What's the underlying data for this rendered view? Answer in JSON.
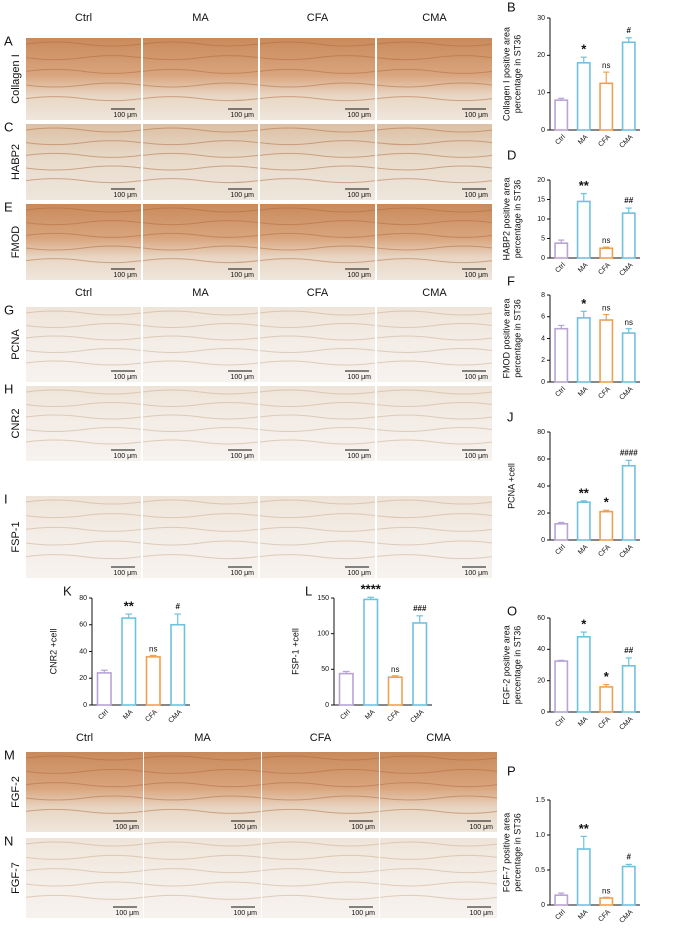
{
  "scale_label": "100 μm",
  "image_groups": [
    {
      "columns": [
        "Ctrl",
        "MA",
        "CFA",
        "CMA"
      ],
      "rows": [
        {
          "letter": "A",
          "label": "Collagen I"
        },
        {
          "letter": "C",
          "label": "HABP2"
        },
        {
          "letter": "E",
          "label": "FMOD"
        }
      ]
    },
    {
      "columns": [
        "Ctrl",
        "MA",
        "CFA",
        "CMA"
      ],
      "rows": [
        {
          "letter": "G",
          "label": "PCNA"
        },
        {
          "letter": "H",
          "label": "CNR2"
        },
        {
          "letter": "I",
          "label": "FSP-1"
        }
      ]
    },
    {
      "columns": [
        "Ctrl",
        "MA",
        "CFA",
        "CMA"
      ],
      "rows": [
        {
          "letter": "M",
          "label": "FGF-2"
        },
        {
          "letter": "N",
          "label": "FGF-7"
        }
      ]
    }
  ],
  "chart_data": [
    {
      "type": "bar",
      "panel": "B",
      "y_label": [
        "Collagen I positive area",
        "percentage in ST36"
      ],
      "categories": [
        "Ctrl",
        "MA",
        "CFA",
        "CMA"
      ],
      "values": [
        8,
        18,
        12.5,
        23.5
      ],
      "errors": [
        0.5,
        1.5,
        3,
        1.2
      ],
      "significance": [
        null,
        "*",
        "ns",
        "#"
      ],
      "colors": [
        "#b7a3d6",
        "#6ec2df",
        "#f0a04f",
        "#6ec2df"
      ],
      "ylim": [
        0,
        30
      ],
      "yticks": [
        0,
        10,
        20,
        30
      ]
    },
    {
      "type": "bar",
      "panel": "D",
      "y_label": [
        "HABP2 positive area",
        "percentage in ST36"
      ],
      "categories": [
        "Ctrl",
        "MA",
        "CFA",
        "CMA"
      ],
      "values": [
        3.8,
        14.5,
        2.5,
        11.5
      ],
      "errors": [
        0.8,
        2,
        0.3,
        1.3
      ],
      "significance": [
        null,
        "**",
        "ns",
        "##"
      ],
      "colors": [
        "#b7a3d6",
        "#6ec2df",
        "#f0a04f",
        "#6ec2df"
      ],
      "ylim": [
        0,
        20
      ],
      "yticks": [
        0,
        5,
        10,
        15,
        20
      ]
    },
    {
      "type": "bar",
      "panel": "F",
      "y_label": [
        "FMOD positive area",
        "percentage in ST36"
      ],
      "categories": [
        "Ctrl",
        "MA",
        "CFA",
        "CMA"
      ],
      "values": [
        4.9,
        5.9,
        5.7,
        4.5
      ],
      "errors": [
        0.3,
        0.6,
        0.5,
        0.4
      ],
      "significance": [
        null,
        "*",
        "ns",
        "ns"
      ],
      "colors": [
        "#b7a3d6",
        "#6ec2df",
        "#f0a04f",
        "#6ec2df"
      ],
      "ylim": [
        0,
        8
      ],
      "yticks": [
        0,
        2,
        4,
        6,
        8
      ]
    },
    {
      "type": "bar",
      "panel": "J",
      "y_label": [
        "PCNA +cell"
      ],
      "categories": [
        "Ctrl",
        "MA",
        "CFA",
        "CMA"
      ],
      "values": [
        12,
        28,
        21,
        55
      ],
      "errors": [
        1,
        1,
        1,
        4
      ],
      "significance": [
        null,
        "**",
        "*",
        "####"
      ],
      "colors": [
        "#b7a3d6",
        "#6ec2df",
        "#f0a04f",
        "#6ec2df"
      ],
      "ylim": [
        0,
        80
      ],
      "yticks": [
        0,
        20,
        40,
        60,
        80
      ]
    },
    {
      "type": "bar",
      "panel": "K",
      "y_label": [
        "CNR2 +cell"
      ],
      "categories": [
        "Ctrl",
        "MA",
        "CFA",
        "CMA"
      ],
      "values": [
        24,
        65,
        36,
        60
      ],
      "errors": [
        2,
        3,
        1,
        8
      ],
      "significance": [
        null,
        "**",
        "ns",
        "#"
      ],
      "colors": [
        "#b7a3d6",
        "#6ec2df",
        "#f0a04f",
        "#6ec2df"
      ],
      "ylim": [
        0,
        80
      ],
      "yticks": [
        0,
        20,
        40,
        60,
        80
      ]
    },
    {
      "type": "bar",
      "panel": "L",
      "y_label": [
        "FSP-1 +cell"
      ],
      "categories": [
        "Ctrl",
        "MA",
        "CFA",
        "CMA"
      ],
      "values": [
        44,
        148,
        39,
        115
      ],
      "errors": [
        3,
        3,
        2,
        10
      ],
      "significance": [
        null,
        "****",
        "ns",
        "###"
      ],
      "colors": [
        "#b7a3d6",
        "#6ec2df",
        "#f0a04f",
        "#6ec2df"
      ],
      "ylim": [
        0,
        150
      ],
      "yticks": [
        0,
        50,
        100,
        150
      ]
    },
    {
      "type": "bar",
      "panel": "O",
      "y_label": [
        "FGF-2 positive area",
        "percentage in ST36"
      ],
      "categories": [
        "Ctrl",
        "MA",
        "CFA",
        "CMA"
      ],
      "values": [
        32.5,
        48,
        16,
        29.5
      ],
      "errors": [
        0.5,
        3,
        1.5,
        5
      ],
      "significance": [
        null,
        "*",
        "*",
        "##"
      ],
      "colors": [
        "#b7a3d6",
        "#6ec2df",
        "#f0a04f",
        "#6ec2df"
      ],
      "ylim": [
        0,
        60
      ],
      "yticks": [
        0,
        20,
        40,
        60
      ]
    },
    {
      "type": "bar",
      "panel": "P",
      "y_label": [
        "FGF-7 positive area",
        "percentage in ST36"
      ],
      "categories": [
        "Ctrl",
        "MA",
        "CFA",
        "CMA"
      ],
      "values": [
        0.14,
        0.8,
        0.1,
        0.55
      ],
      "errors": [
        0.03,
        0.18,
        0.01,
        0.03
      ],
      "significance": [
        null,
        "**",
        "ns",
        "#"
      ],
      "colors": [
        "#b7a3d6",
        "#6ec2df",
        "#f0a04f",
        "#6ec2df"
      ],
      "ylim": [
        0,
        1.5
      ],
      "yticks": [
        0,
        0.5,
        {
          "value": 1,
          "label": "1.0"
        },
        1.5
      ]
    }
  ]
}
